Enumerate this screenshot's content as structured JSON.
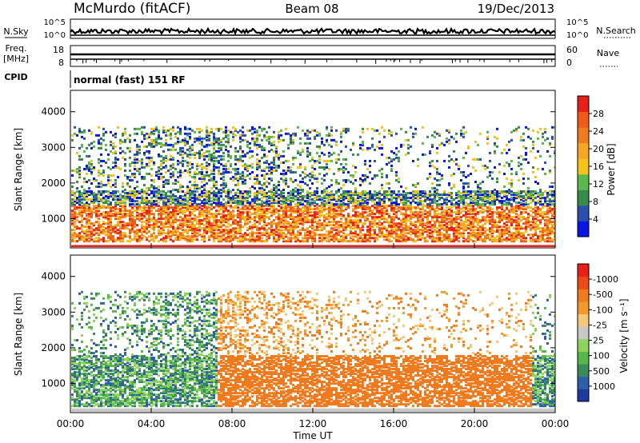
{
  "header": {
    "station": "McMurdo (fitACF)",
    "beam": "Beam 08",
    "date": "19/Dec/2013"
  },
  "noise_panel": {
    "left_label": "N.Sky",
    "right_label": "N.Search",
    "left_ticks": [
      "10^5",
      "10^0"
    ],
    "right_ticks": [
      "10^5",
      "10^0"
    ]
  },
  "freq_panel": {
    "left_label_line1": "Freq.",
    "left_label_line2": "[MHz]",
    "left_ticks": [
      "18",
      "8"
    ],
    "right_label": "Nave",
    "right_ticks": [
      "60",
      "0"
    ]
  },
  "cpid": {
    "label": "CPID",
    "value": "normal (fast) 151 RF"
  },
  "chart_data": [
    {
      "type": "heatmap",
      "name": "power",
      "ylabel": "Slant Range [km]",
      "xlabel": "",
      "x_ticks": [
        "00:00",
        "04:00",
        "08:00",
        "12:00",
        "16:00",
        "20:00",
        "00:00"
      ],
      "y_ticks": [
        "1000",
        "2000",
        "3000",
        "4000"
      ],
      "ylim": [
        180,
        4600
      ],
      "colorbar": {
        "label": "Power [dB]",
        "ticks": [
          "4",
          "8",
          "12",
          "16",
          "20",
          "24",
          "28"
        ],
        "colors": [
          "#0a14e6",
          "#2b4fae",
          "#3a8a4a",
          "#5bb84d",
          "#f5c21b",
          "#f5a623",
          "#f07a1e",
          "#ee5a18",
          "#e8201a"
        ]
      }
    },
    {
      "type": "heatmap",
      "name": "velocity",
      "ylabel": "Slant Range [km]",
      "xlabel": "Time UT",
      "x_ticks": [
        "00:00",
        "04:00",
        "08:00",
        "12:00",
        "16:00",
        "20:00",
        "00:00"
      ],
      "y_ticks": [
        "1000",
        "2000",
        "3000",
        "4000"
      ],
      "ylim": [
        180,
        4600
      ],
      "colorbar": {
        "label": "Velocity [m s⁻¹]",
        "ticks": [
          "1000",
          "500",
          "100",
          "25",
          "-25",
          "-100",
          "-500",
          "-1000"
        ],
        "colors": [
          "#1e3a9e",
          "#2d5fa8",
          "#3c8a5a",
          "#56b84a",
          "#8fd45a",
          "#c8c8c8",
          "#f5c87a",
          "#f59a2a",
          "#f07a1e",
          "#ee4a18",
          "#e8201a"
        ]
      }
    }
  ]
}
